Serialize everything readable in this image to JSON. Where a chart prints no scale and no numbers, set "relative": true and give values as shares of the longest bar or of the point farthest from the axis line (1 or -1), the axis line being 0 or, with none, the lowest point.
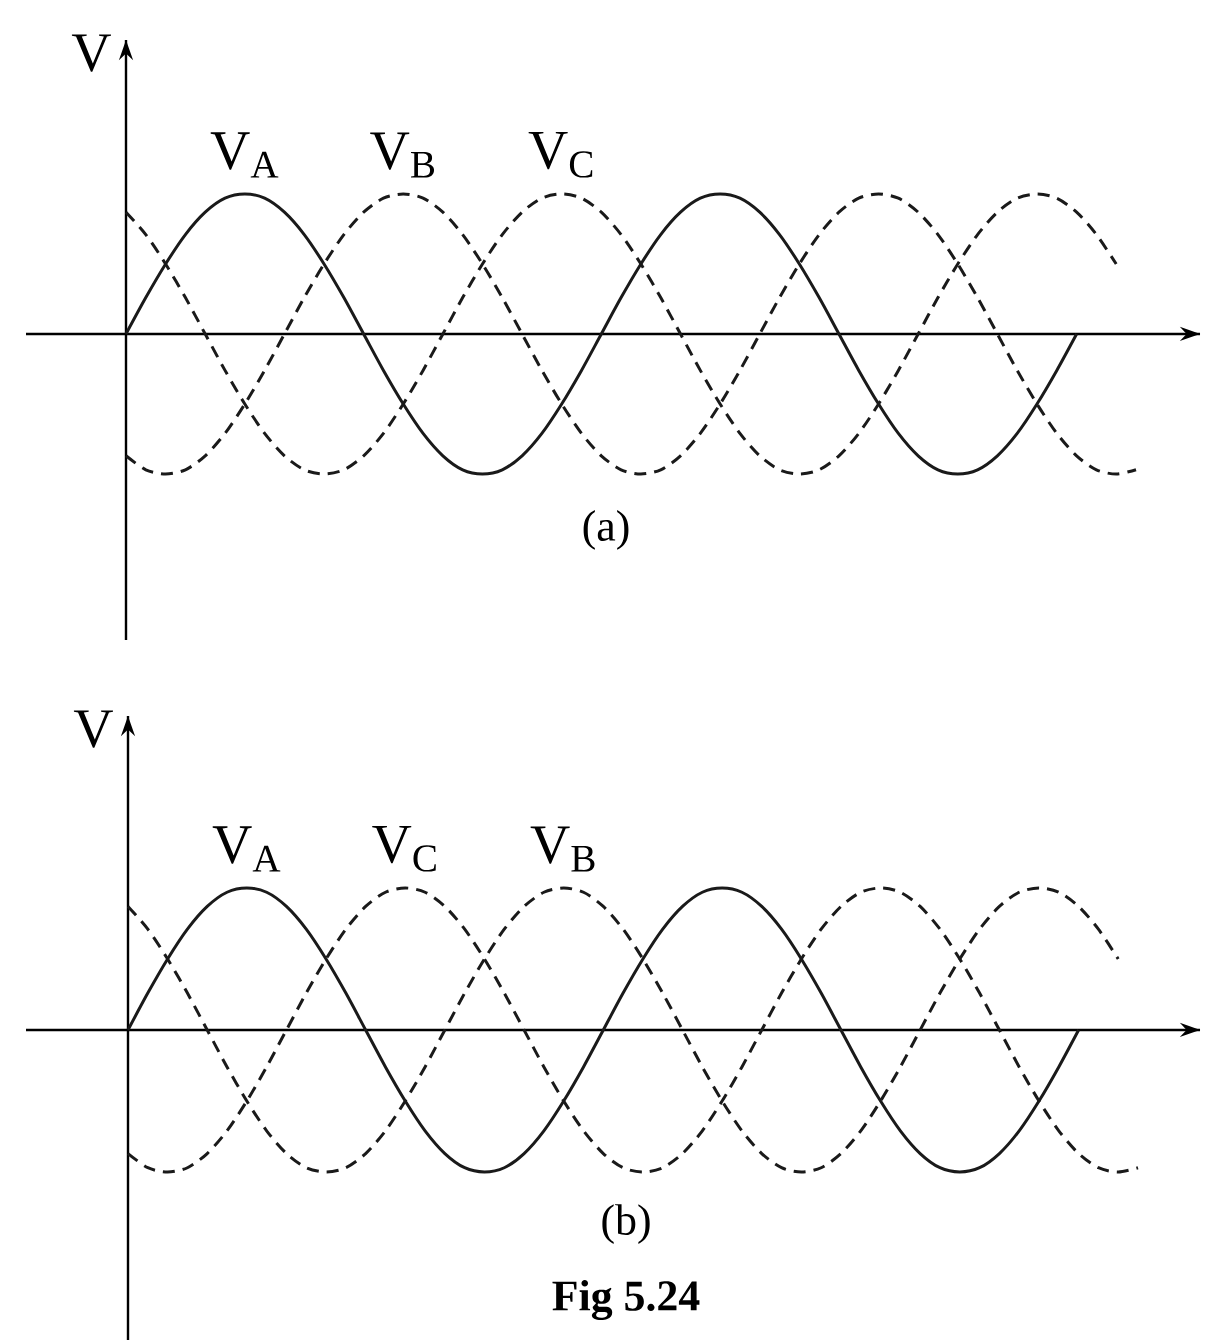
{
  "chart_data": [
    {
      "type": "line",
      "relative": true,
      "ylabel": "V",
      "categories": [
        null,
        null,
        null,
        null,
        null,
        null,
        null,
        null,
        null,
        null,
        null,
        null,
        null,
        null,
        null,
        null,
        null,
        null,
        null,
        null,
        null,
        null,
        null,
        null,
        null,
        null,
        null,
        null,
        null,
        null,
        null,
        null,
        null,
        null,
        null,
        null,
        null,
        null,
        null,
        null,
        null,
        null,
        null,
        null,
        null,
        null,
        null,
        null,
        null,
        null,
        null,
        null
      ],
      "series": [
        {
          "name": "V$_{A}$",
          "color": "#1a1a1a",
          "line_style": "solid",
          "values": [
            0,
            0.26,
            0.5,
            0.71,
            0.87,
            0.97,
            1,
            0.97,
            0.87,
            0.71,
            0.5,
            0.26,
            0,
            -0.26,
            -0.5,
            -0.71,
            -0.87,
            -0.97,
            -1,
            -0.97,
            -0.87,
            -0.71,
            -0.5,
            -0.26,
            0,
            0.26,
            0.5,
            0.71,
            0.87,
            0.97,
            1,
            0.97,
            0.87,
            0.71,
            0.5,
            0.26,
            0,
            -0.26,
            -0.5,
            -0.71,
            -0.87,
            -0.97,
            -1,
            -0.97,
            -0.87,
            -0.71,
            -0.5,
            -0.26,
            0,
            null,
            null,
            null
          ]
        },
        {
          "name": "V$_{B}$",
          "color": "#1a1a1a",
          "line_style": "dashed",
          "values": [
            -0.87,
            -0.97,
            -1,
            -0.97,
            -0.87,
            -0.71,
            -0.5,
            -0.26,
            0,
            0.26,
            0.5,
            0.71,
            0.87,
            0.97,
            1,
            0.97,
            0.87,
            0.71,
            0.5,
            0.26,
            0,
            -0.26,
            -0.5,
            -0.71,
            -0.87,
            -0.97,
            -1,
            -0.97,
            -0.87,
            -0.71,
            -0.5,
            -0.26,
            0,
            0.26,
            0.5,
            0.71,
            0.87,
            0.97,
            1,
            0.97,
            0.87,
            0.71,
            0.5,
            0.26,
            0,
            -0.26,
            -0.5,
            -0.71,
            -0.87,
            -0.97,
            -1,
            -0.97
          ]
        },
        {
          "name": "V$_{C}$",
          "color": "#1a1a1a",
          "line_style": "dashed",
          "values": [
            0.87,
            0.71,
            0.5,
            0.26,
            0,
            -0.26,
            -0.5,
            -0.71,
            -0.87,
            -0.97,
            -1,
            -0.97,
            -0.87,
            -0.71,
            -0.5,
            -0.26,
            0,
            0.26,
            0.5,
            0.71,
            0.87,
            0.97,
            1,
            0.97,
            0.87,
            0.71,
            0.5,
            0.26,
            0,
            -0.26,
            -0.5,
            -0.71,
            -0.87,
            -0.97,
            -1,
            -0.97,
            -0.87,
            -0.71,
            -0.5,
            -0.26,
            0,
            0.26,
            0.5,
            0.71,
            0.87,
            0.97,
            1,
            0.97,
            0.87,
            0.71,
            0.5,
            null
          ]
        }
      ],
      "annotations": [
        "(a)"
      ]
    },
    {
      "type": "line",
      "relative": true,
      "ylabel": "V",
      "categories": [
        null,
        null,
        null,
        null,
        null,
        null,
        null,
        null,
        null,
        null,
        null,
        null,
        null,
        null,
        null,
        null,
        null,
        null,
        null,
        null,
        null,
        null,
        null,
        null,
        null,
        null,
        null,
        null,
        null,
        null,
        null,
        null,
        null,
        null,
        null,
        null,
        null,
        null,
        null,
        null,
        null,
        null,
        null,
        null,
        null,
        null,
        null,
        null,
        null,
        null,
        null,
        null
      ],
      "series": [
        {
          "name": "V$_{A}$",
          "color": "#1a1a1a",
          "line_style": "solid",
          "values": [
            0,
            0.26,
            0.5,
            0.71,
            0.87,
            0.97,
            1,
            0.97,
            0.87,
            0.71,
            0.5,
            0.26,
            0,
            -0.26,
            -0.5,
            -0.71,
            -0.87,
            -0.97,
            -1,
            -0.97,
            -0.87,
            -0.71,
            -0.5,
            -0.26,
            0,
            0.26,
            0.5,
            0.71,
            0.87,
            0.97,
            1,
            0.97,
            0.87,
            0.71,
            0.5,
            0.26,
            0,
            -0.26,
            -0.5,
            -0.71,
            -0.87,
            -0.97,
            -1,
            -0.97,
            -0.87,
            -0.71,
            -0.5,
            -0.26,
            0,
            null,
            null,
            null
          ]
        },
        {
          "name": "V$_{C}$",
          "color": "#1a1a1a",
          "line_style": "dashed",
          "values": [
            -0.87,
            -0.97,
            -1,
            -0.97,
            -0.87,
            -0.71,
            -0.5,
            -0.26,
            0,
            0.26,
            0.5,
            0.71,
            0.87,
            0.97,
            1,
            0.97,
            0.87,
            0.71,
            0.5,
            0.26,
            0,
            -0.26,
            -0.5,
            -0.71,
            -0.87,
            -0.97,
            -1,
            -0.97,
            -0.87,
            -0.71,
            -0.5,
            -0.26,
            0,
            0.26,
            0.5,
            0.71,
            0.87,
            0.97,
            1,
            0.97,
            0.87,
            0.71,
            0.5,
            0.26,
            0,
            -0.26,
            -0.5,
            -0.71,
            -0.87,
            -0.97,
            -1,
            -0.97
          ]
        },
        {
          "name": "V$_{B}$",
          "color": "#1a1a1a",
          "line_style": "dashed",
          "values": [
            0.87,
            0.71,
            0.5,
            0.26,
            0,
            -0.26,
            -0.5,
            -0.71,
            -0.87,
            -0.97,
            -1,
            -0.97,
            -0.87,
            -0.71,
            -0.5,
            -0.26,
            0,
            0.26,
            0.5,
            0.71,
            0.87,
            0.97,
            1,
            0.97,
            0.87,
            0.71,
            0.5,
            0.26,
            0,
            -0.26,
            -0.5,
            -0.71,
            -0.87,
            -0.97,
            -1,
            -0.97,
            -0.87,
            -0.71,
            -0.5,
            -0.26,
            0,
            0.26,
            0.5,
            0.71,
            0.87,
            0.97,
            1,
            0.97,
            0.87,
            0.71,
            0.5,
            null
          ]
        }
      ],
      "annotations": [
        "(b)",
        "Fig 5.24"
      ]
    }
  ]
}
